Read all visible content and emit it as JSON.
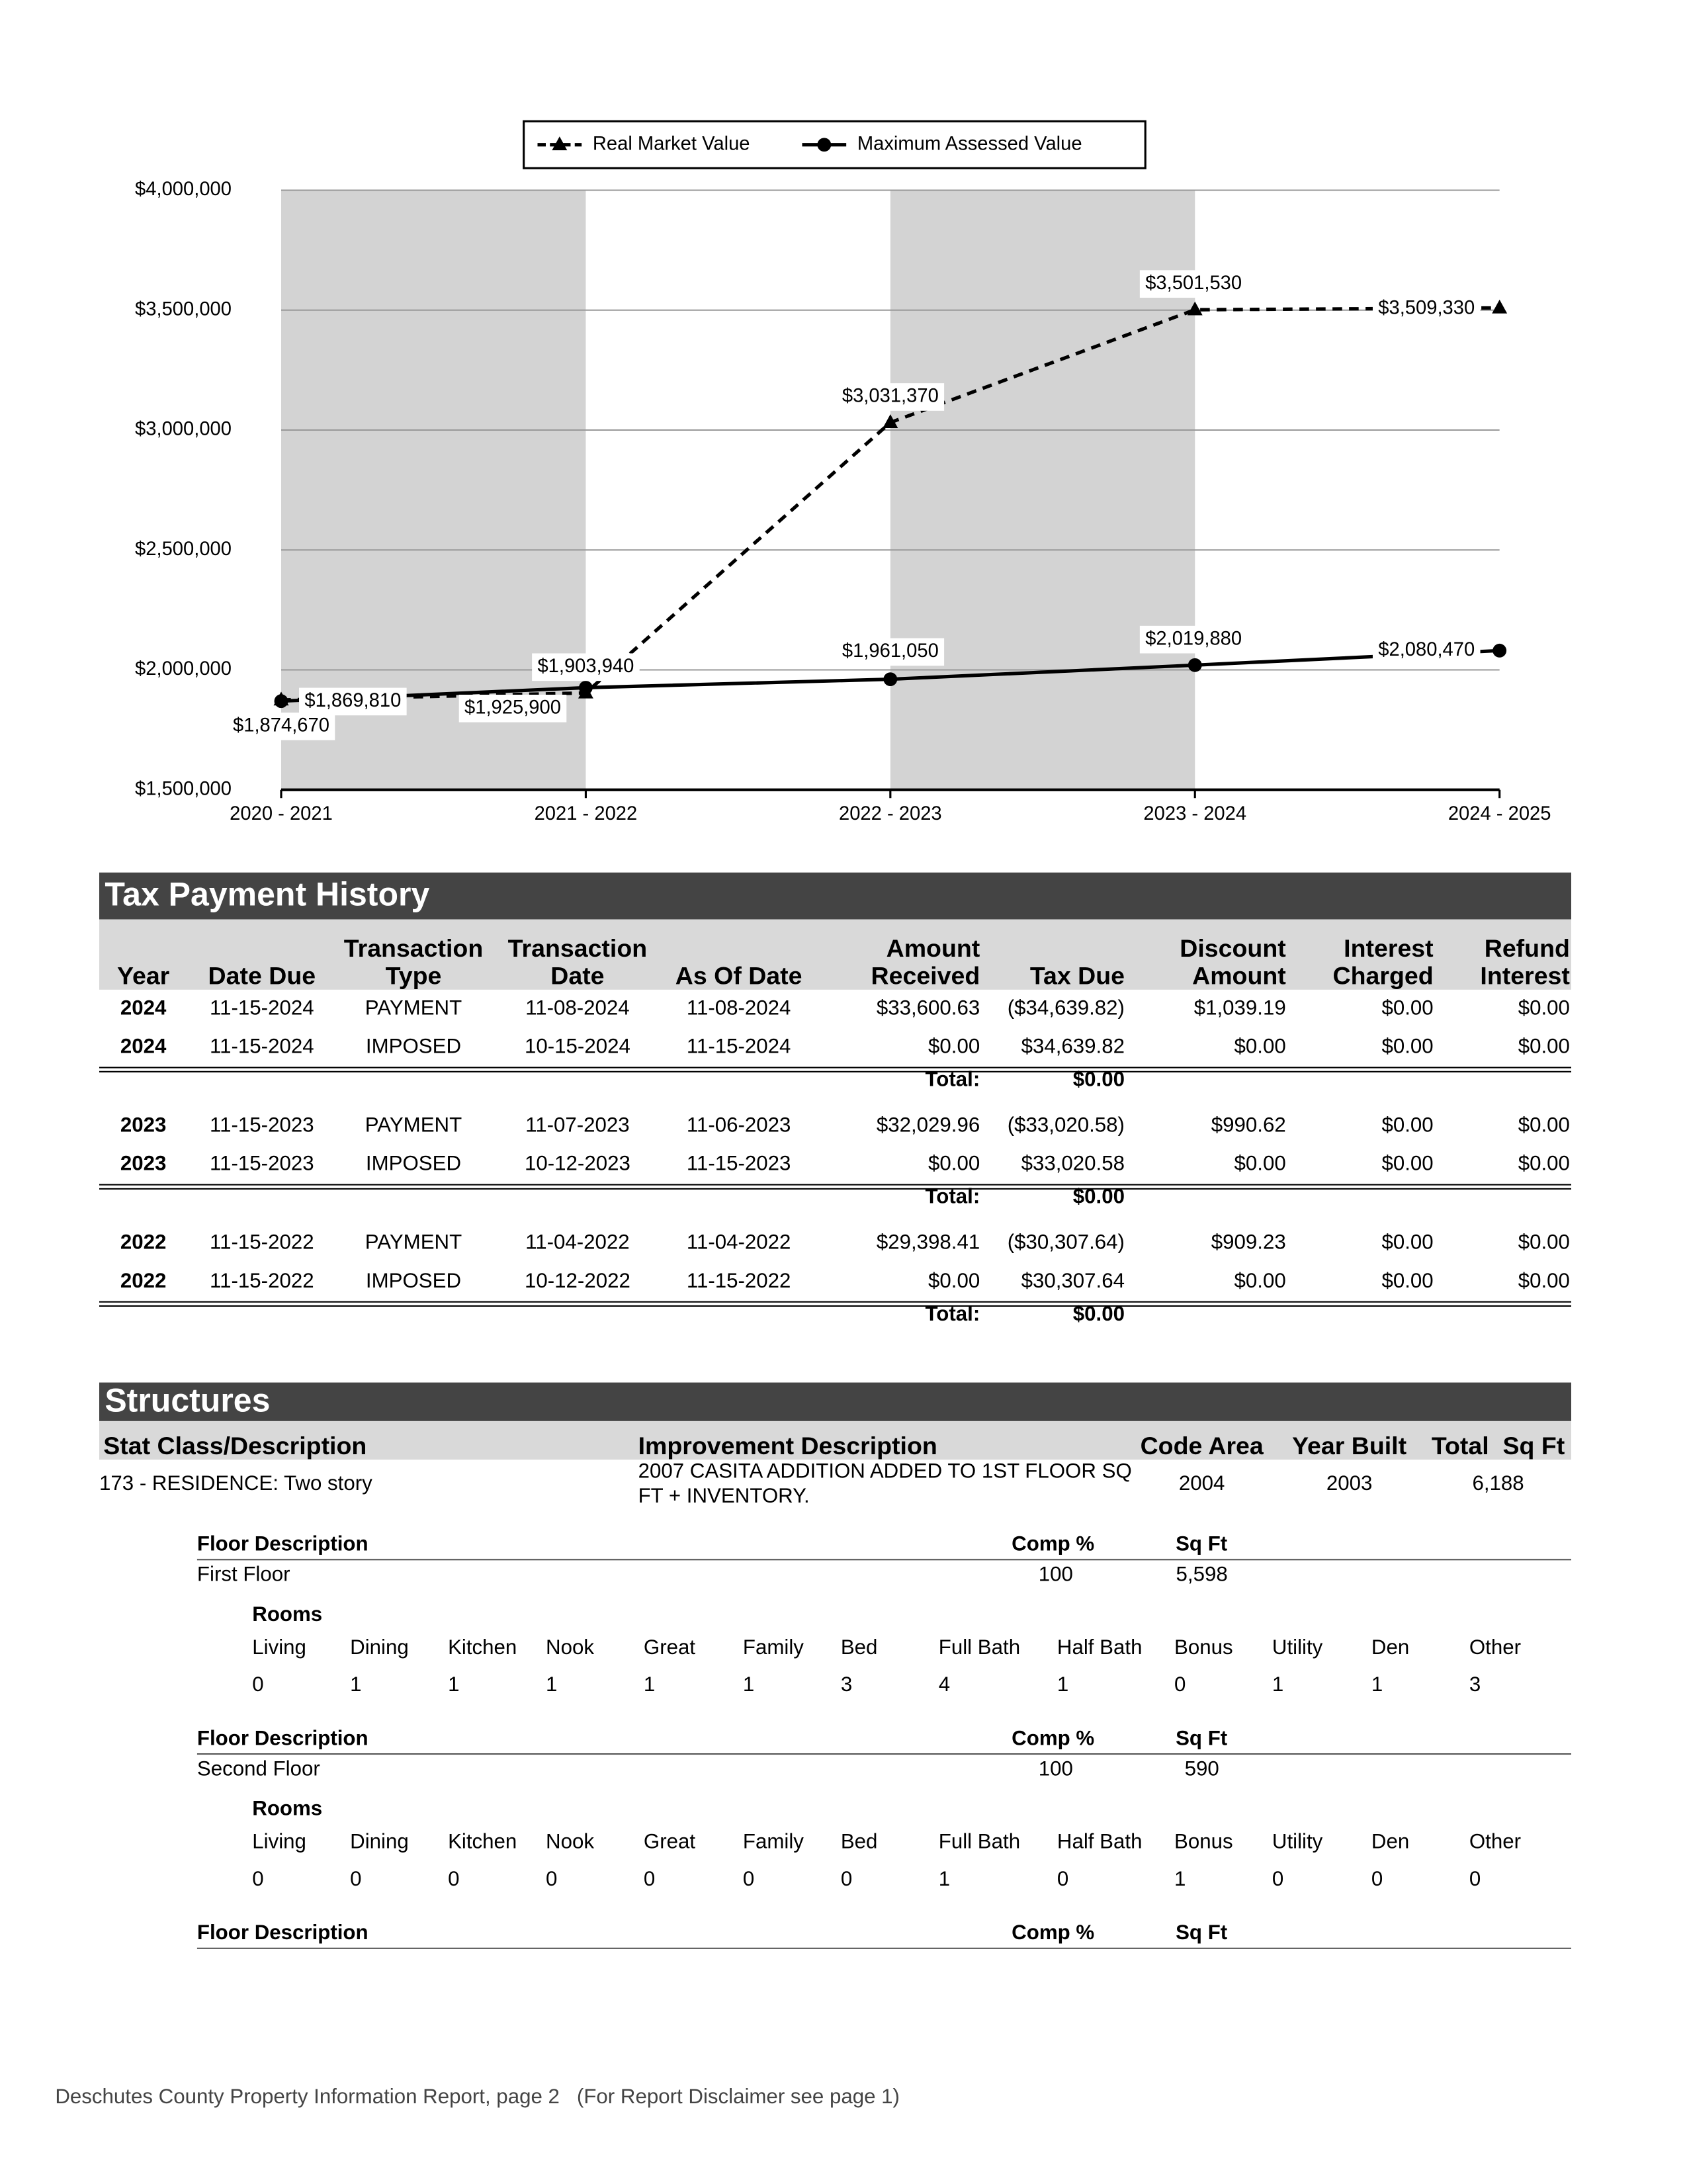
{
  "chart_data": {
    "type": "line",
    "categories": [
      "2020 - 2021",
      "2021 - 2022",
      "2022 - 2023",
      "2023 - 2024",
      "2024 - 2025"
    ],
    "series": [
      {
        "name": "Real Market Value",
        "color": "#000000",
        "marker": "triangle",
        "dashed": true,
        "values": [
          1874670,
          1903940,
          3031370,
          3501530,
          3509330
        ],
        "value_labels": [
          "$1,874,670",
          "$1,903,940",
          "$3,031,370",
          "$3,501,530",
          "$3,509,330"
        ]
      },
      {
        "name": "Maximum Assessed Value",
        "color": "#000000",
        "marker": "circle",
        "dashed": false,
        "values": [
          1869810,
          1925900,
          1961050,
          2019880,
          2080470
        ],
        "value_labels": [
          "$1,869,810",
          "$1,925,900",
          "$1,961,050",
          "$2,019,880",
          "$2,080,470"
        ]
      }
    ],
    "ylim": [
      1500000,
      4000000
    ],
    "yticks": [
      {
        "value": 1500000,
        "label": "$1,500,000"
      },
      {
        "value": 2000000,
        "label": "$2,000,000"
      },
      {
        "value": 2500000,
        "label": "$2,500,000"
      },
      {
        "value": 3000000,
        "label": "$3,000,000"
      },
      {
        "value": 3500000,
        "label": "$3,500,000"
      },
      {
        "value": 4000000,
        "label": "$4,000,000"
      }
    ],
    "grid": true,
    "legend": "top"
  },
  "tax_payment_history": {
    "title": "Tax Payment History",
    "headers": [
      "Year",
      "Date Due",
      "Transaction Type",
      "Transaction Date",
      "As Of Date",
      "Amount Received",
      "Tax Due",
      "Discount Amount",
      "Interest Charged",
      "Refund Interest"
    ],
    "total_label": "Total:",
    "groups": [
      {
        "rows": [
          [
            "2024",
            "11-15-2024",
            "PAYMENT",
            "11-08-2024",
            "11-08-2024",
            "$33,600.63",
            "($34,639.82)",
            "$1,039.19",
            "$0.00",
            "$0.00"
          ],
          [
            "2024",
            "11-15-2024",
            "IMPOSED",
            "10-15-2024",
            "11-15-2024",
            "$0.00",
            "$34,639.82",
            "$0.00",
            "$0.00",
            "$0.00"
          ]
        ],
        "total": "$0.00"
      },
      {
        "rows": [
          [
            "2023",
            "11-15-2023",
            "PAYMENT",
            "11-07-2023",
            "11-06-2023",
            "$32,029.96",
            "($33,020.58)",
            "$990.62",
            "$0.00",
            "$0.00"
          ],
          [
            "2023",
            "11-15-2023",
            "IMPOSED",
            "10-12-2023",
            "11-15-2023",
            "$0.00",
            "$33,020.58",
            "$0.00",
            "$0.00",
            "$0.00"
          ]
        ],
        "total": "$0.00"
      },
      {
        "rows": [
          [
            "2022",
            "11-15-2022",
            "PAYMENT",
            "11-04-2022",
            "11-04-2022",
            "$29,398.41",
            "($30,307.64)",
            "$909.23",
            "$0.00",
            "$0.00"
          ],
          [
            "2022",
            "11-15-2022",
            "IMPOSED",
            "10-12-2022",
            "11-15-2022",
            "$0.00",
            "$30,307.64",
            "$0.00",
            "$0.00",
            "$0.00"
          ]
        ],
        "total": "$0.00"
      }
    ]
  },
  "structures": {
    "title": "Structures",
    "headers": [
      "Stat Class/Description",
      "Improvement Description",
      "Code Area",
      "Year Built",
      "Total  Sq Ft"
    ],
    "row": [
      "173 - RESIDENCE: Two story",
      "2007 CASITA ADDITION ADDED TO 1ST FLOOR SQ FT + INVENTORY.",
      "2004",
      "2003",
      "6,188"
    ],
    "floor_headers": [
      "Floor Description",
      "Comp %",
      "Sq Ft"
    ],
    "rooms_label": "Rooms",
    "room_names": [
      "Living",
      "Dining",
      "Kitchen",
      "Nook",
      "Great",
      "Family",
      "Bed",
      "Full Bath",
      "Half Bath",
      "Bonus",
      "Utility",
      "Den",
      "Other"
    ],
    "floors": [
      {
        "description": "First Floor",
        "comp": "100",
        "sqft": "5,598",
        "rooms": [
          "0",
          "1",
          "1",
          "1",
          "1",
          "1",
          "3",
          "4",
          "1",
          "0",
          "1",
          "1",
          "3"
        ]
      },
      {
        "description": "Second Floor",
        "comp": "100",
        "sqft": "590",
        "rooms": [
          "0",
          "0",
          "0",
          "0",
          "0",
          "0",
          "0",
          "1",
          "0",
          "1",
          "0",
          "0",
          "0"
        ]
      }
    ]
  },
  "footer": "Deschutes County Property Information Report, page 2   (For Report Disclaimer see page 1)"
}
